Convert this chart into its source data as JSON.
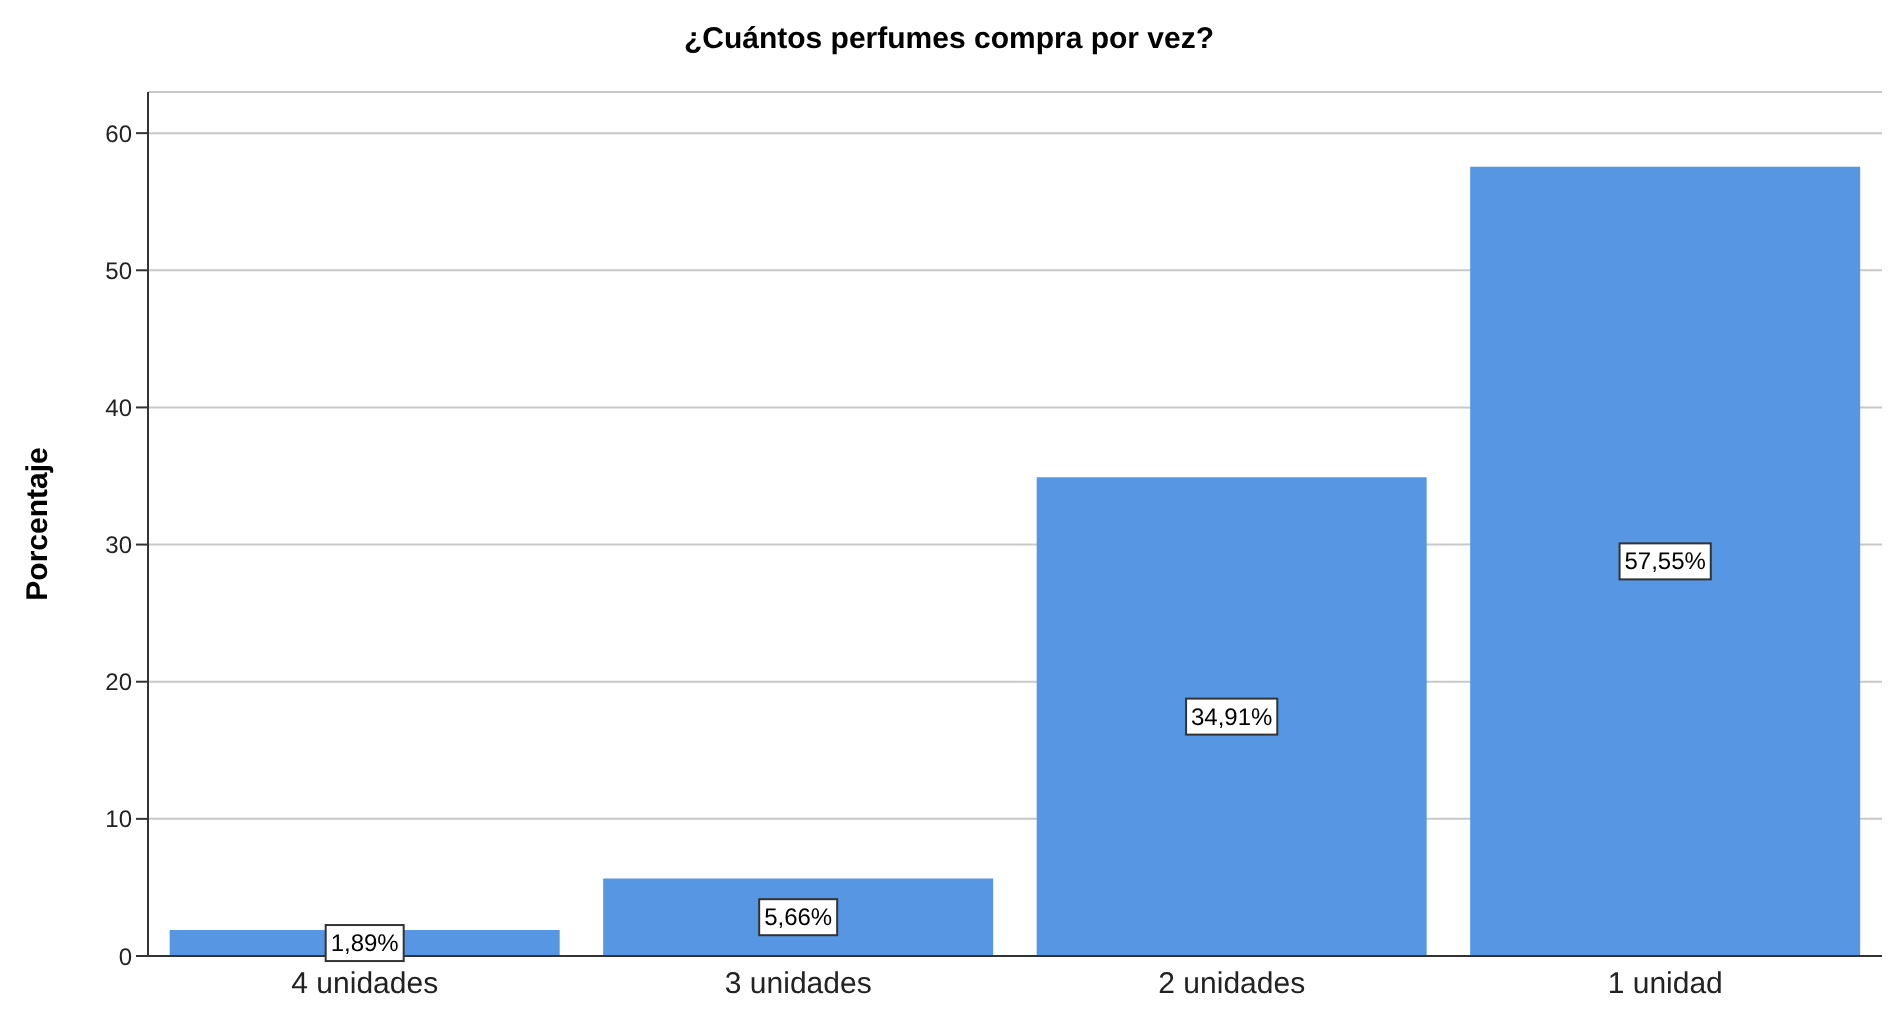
{
  "chart_data": {
    "type": "bar",
    "title": "¿Cuántos perfumes compra por vez?",
    "ylabel": "Porcentaje",
    "categories": [
      "4 unidades",
      "3 unidades",
      "2 unidades",
      "1 unidad"
    ],
    "values": [
      1.89,
      5.66,
      34.91,
      57.55
    ],
    "value_labels": [
      "1,89%",
      "5,66%",
      "34,91%",
      "57,55%"
    ],
    "color": "#5696e3",
    "ylim": [
      0,
      63
    ],
    "yticks": [
      0,
      10,
      20,
      30,
      40,
      50,
      60
    ],
    "grid": "y"
  }
}
